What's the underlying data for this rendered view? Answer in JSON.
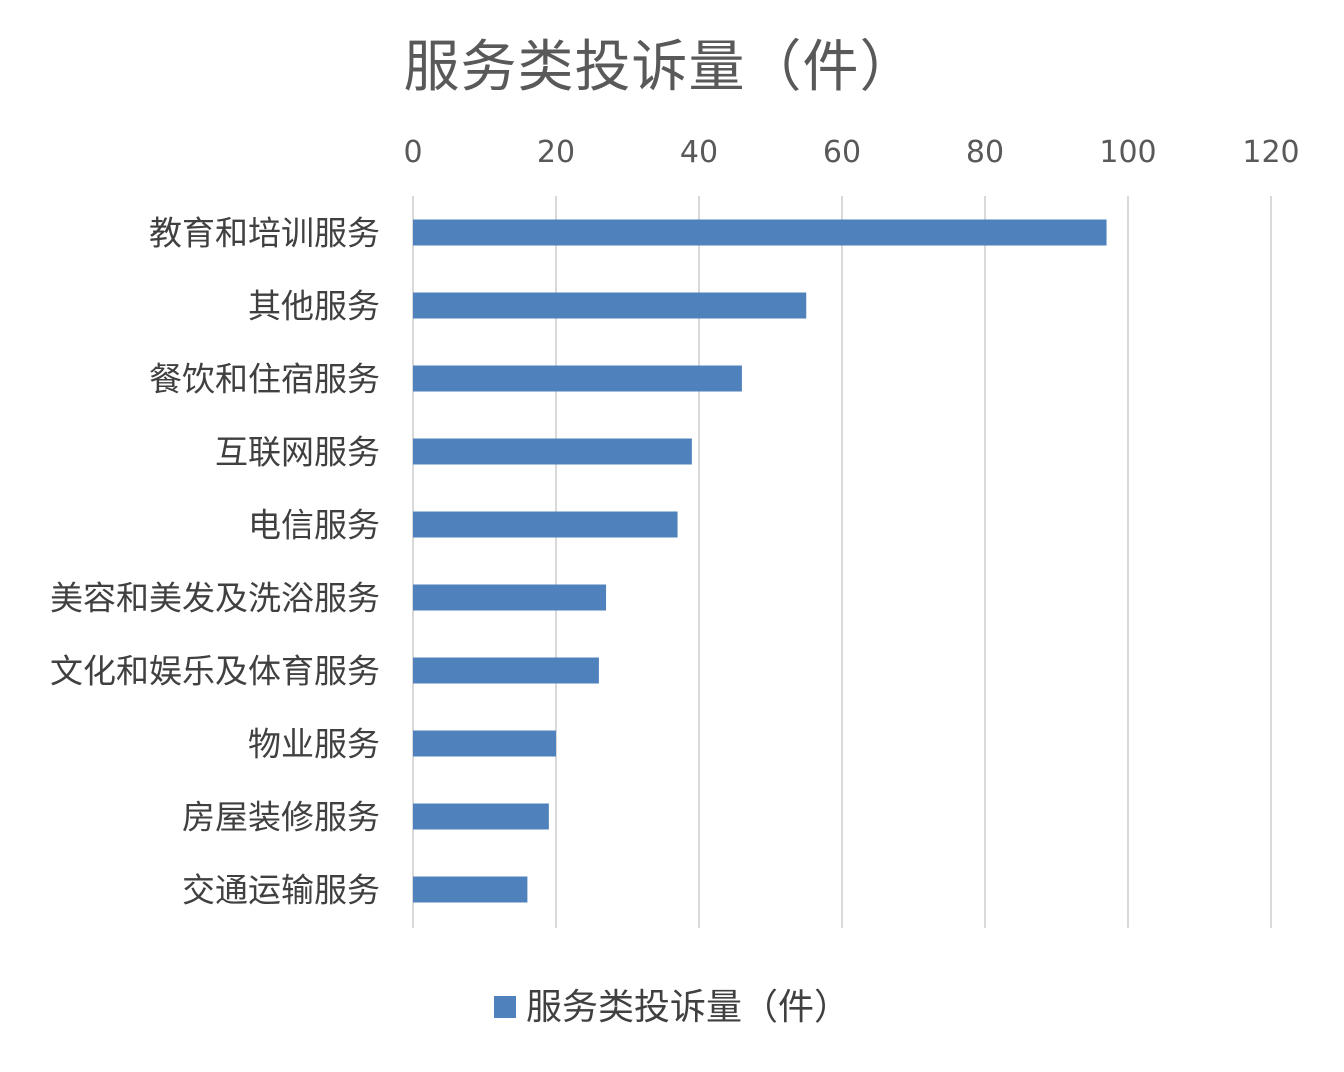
{
  "chart_data": {
    "type": "bar",
    "orientation": "horizontal",
    "title": "服务类投诉量（件）",
    "categories": [
      "教育和培训服务",
      "其他服务",
      "餐饮和住宿服务",
      "互联网服务",
      "电信服务",
      "美容和美发及洗浴服务",
      "文化和娱乐及体育服务",
      "物业服务",
      "房屋装修服务",
      "交通运输服务"
    ],
    "series": [
      {
        "name": "服务类投诉量（件）",
        "values": [
          97,
          55,
          46,
          39,
          37,
          27,
          26,
          20,
          19,
          16
        ],
        "color": "#4F81BD"
      }
    ],
    "xlim": [
      0,
      120
    ],
    "xticks": [
      "0",
      "20",
      "40",
      "60",
      "80",
      "100",
      "120"
    ],
    "x_axis_position": "top",
    "grid": true,
    "gridline_color": "#D9D9D9",
    "legend": "bottom"
  }
}
